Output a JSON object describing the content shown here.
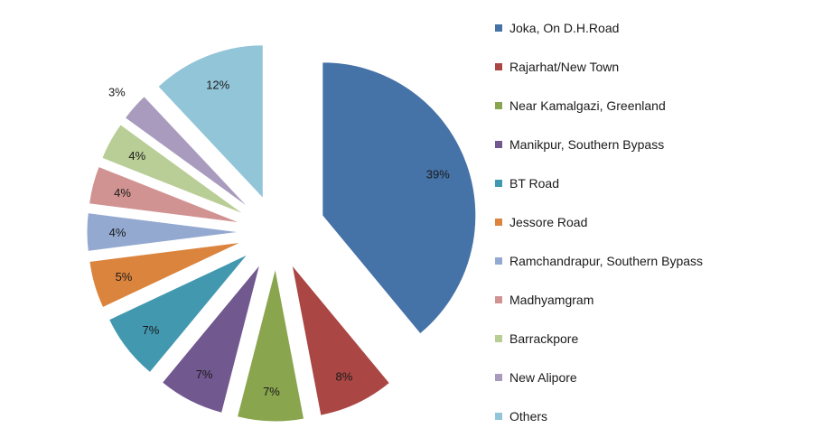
{
  "chart_data": {
    "type": "pie",
    "exploded": true,
    "start_angle_deg": 0,
    "direction": "clockwise",
    "legend_position": "right",
    "slices": [
      {
        "label": "Joka, On D.H.Road",
        "value": 39,
        "display": "39%",
        "color": "#4572A7"
      },
      {
        "label": "Rajarhat/New Town",
        "value": 8,
        "display": "8%",
        "color": "#AA4643"
      },
      {
        "label": "Near Kamalgazi, Greenland",
        "value": 7,
        "display": "7%",
        "color": "#89A54E"
      },
      {
        "label": "Manikpur, Southern Bypass",
        "value": 7,
        "display": "7%",
        "color": "#71588F"
      },
      {
        "label": "BT Road",
        "value": 7,
        "display": "7%",
        "color": "#4198AF"
      },
      {
        "label": "Jessore Road",
        "value": 5,
        "display": "5%",
        "color": "#DB843D"
      },
      {
        "label": "Ramchandrapur, Southern Bypass",
        "value": 4,
        "display": "4%",
        "color": "#93A9CF"
      },
      {
        "label": "Madhyamgram",
        "value": 4,
        "display": "4%",
        "color": "#D19392"
      },
      {
        "label": "Barrackpore",
        "value": 4,
        "display": "4%",
        "color": "#B9CD96"
      },
      {
        "label": "New Alipore",
        "value": 3,
        "display": "3%",
        "color": "#A99BBD"
      },
      {
        "label": "Others",
        "value": 12,
        "display": "12%",
        "color": "#92C5D8"
      }
    ]
  }
}
